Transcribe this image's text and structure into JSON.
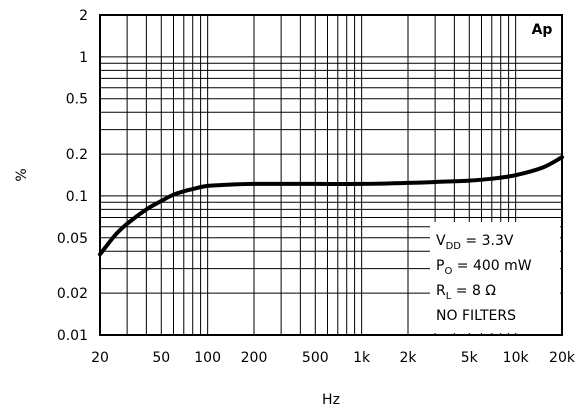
{
  "chart_data": {
    "type": "line",
    "xlabel": "Hz",
    "ylabel": "%",
    "x_scale": "log",
    "y_scale": "log",
    "xlim": [
      20,
      20000
    ],
    "ylim": [
      0.01,
      2
    ],
    "grid": true,
    "x_ticks": [
      {
        "value": 20,
        "label": "20"
      },
      {
        "value": 50,
        "label": "50"
      },
      {
        "value": 100,
        "label": "100"
      },
      {
        "value": 200,
        "label": "200"
      },
      {
        "value": 500,
        "label": "500"
      },
      {
        "value": 1000,
        "label": "1k"
      },
      {
        "value": 2000,
        "label": "2k"
      },
      {
        "value": 5000,
        "label": "5k"
      },
      {
        "value": 10000,
        "label": "10k"
      },
      {
        "value": 20000,
        "label": "20k"
      }
    ],
    "y_ticks": [
      {
        "value": 0.01,
        "label": "0.01"
      },
      {
        "value": 0.02,
        "label": "0.02"
      },
      {
        "value": 0.05,
        "label": "0.05"
      },
      {
        "value": 0.1,
        "label": "0.1"
      },
      {
        "value": 0.2,
        "label": "0.2"
      },
      {
        "value": 0.5,
        "label": "0.5"
      },
      {
        "value": 1,
        "label": "1"
      },
      {
        "value": 2,
        "label": "2"
      }
    ],
    "series": [
      {
        "x": [
          20,
          25,
          30,
          40,
          50,
          60,
          70,
          80,
          100,
          150,
          200,
          300,
          500,
          1000,
          2000,
          3000,
          5000,
          7000,
          10000,
          15000,
          20000
        ],
        "y": [
          0.038,
          0.052,
          0.063,
          0.08,
          0.092,
          0.102,
          0.108,
          0.112,
          0.118,
          0.121,
          0.122,
          0.122,
          0.122,
          0.122,
          0.124,
          0.126,
          0.129,
          0.133,
          0.141,
          0.16,
          0.19
        ]
      }
    ],
    "badge": "Ap",
    "annotation": {
      "lines": [
        {
          "main": "V",
          "sub": "DD",
          "rest": " = 3.3V"
        },
        {
          "main": "P",
          "sub": "O",
          "rest": " = 400 mW"
        },
        {
          "main": "R",
          "sub": "L",
          "rest": " = 8 Ω"
        },
        {
          "main": "NO FILTERS",
          "sub": "",
          "rest": ""
        }
      ]
    }
  }
}
